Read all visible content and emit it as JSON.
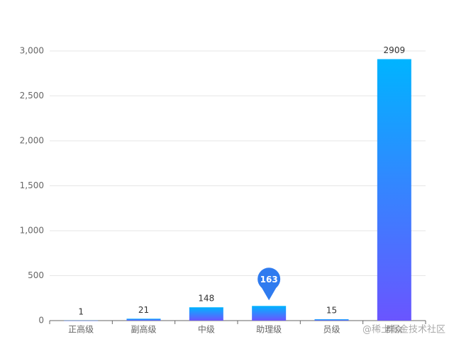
{
  "chart_data": {
    "type": "bar",
    "categories": [
      "正高级",
      "副高级",
      "中级",
      "助理级",
      "员级",
      "群众"
    ],
    "values": [
      1,
      21,
      148,
      163,
      15,
      2909
    ],
    "color_top": "#00b4ff",
    "color_bottom": "#6a55ff",
    "mark_point_color": "#2f7bef",
    "mark_point_index": 3,
    "ylim": [
      0,
      3000
    ],
    "yticks": [
      0,
      500,
      {
        "value": 1000,
        "label": "1,000"
      },
      {
        "value": 1500,
        "label": "1,500"
      },
      {
        "value": 2000,
        "label": "2,000"
      },
      {
        "value": 2500,
        "label": "2,500"
      },
      {
        "value": 3000,
        "label": "3,000"
      }
    ],
    "grid": true
  },
  "watermark": "@稀土掘金技术社区"
}
